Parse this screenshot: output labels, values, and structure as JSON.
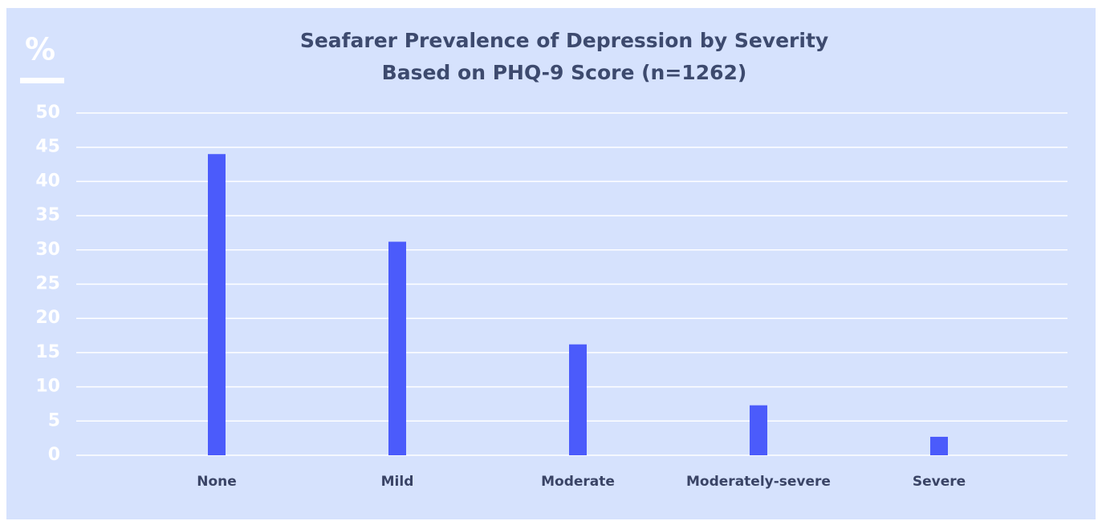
{
  "chart_data": {
    "type": "bar",
    "title": "Seafarer Prevalence of Depression by Severity",
    "subtitle": "Based on PHQ-9 Score (n=1262)",
    "y_label": "%",
    "categories": [
      "None",
      "Mild",
      "Moderate",
      "Moderately-severe",
      "Severe"
    ],
    "values": [
      44,
      31.2,
      16.2,
      7.3,
      2.7
    ],
    "color": "#4b5bfb",
    "ylim": [
      0,
      50
    ],
    "yticks": [
      0,
      5,
      10,
      15,
      20,
      25,
      30,
      35,
      40,
      45,
      50
    ],
    "grid": true
  }
}
